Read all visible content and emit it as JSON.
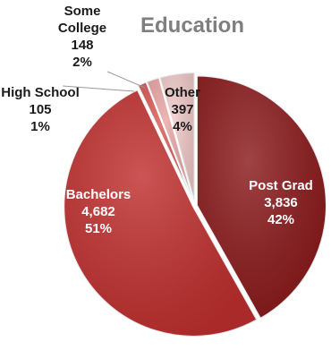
{
  "chart_data": {
    "type": "pie",
    "title": "Education",
    "slices": [
      {
        "label": "Post Grad",
        "value": 3836,
        "value_text": "3,836",
        "percent_text": "42%",
        "color": "#8b1a1c",
        "label_color": "#ffffff"
      },
      {
        "label": "Bachelors",
        "value": 4682,
        "value_text": "4,682",
        "percent_text": "51%",
        "color": "#c0302f",
        "label_color": "#ffffff"
      },
      {
        "label": "High School",
        "value": 105,
        "value_text": "105",
        "percent_text": "1%",
        "color": "#d95a55",
        "label_color": "#1a1a1a"
      },
      {
        "label": "Some College",
        "value": 148,
        "value_text": "148",
        "percent_text": "2%",
        "color": "#e9a6a4",
        "label_color": "#1a1a1a"
      },
      {
        "label": "Other",
        "value": 397,
        "value_text": "397",
        "percent_text": "4%",
        "color": "#f0c9c9",
        "label_color": "#1a1a1a"
      }
    ],
    "legend": "none",
    "start_angle": "12 o'clock, clockwise"
  }
}
